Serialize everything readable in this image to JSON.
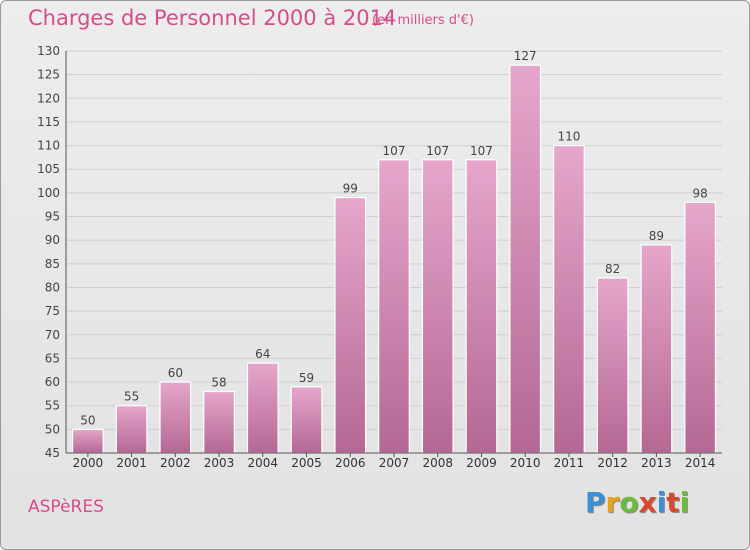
{
  "header": {
    "title": "Charges de Personnel 2000 à 2014",
    "subtitle": "(en milliers d'€)"
  },
  "footer": {
    "commune": "ASPèRES",
    "logo": {
      "letters": [
        "P",
        "r",
        "o",
        "x",
        "i",
        "t",
        "i"
      ],
      "colors": [
        "#3a8fd6",
        "#e8a317",
        "#6dbb3a",
        "#d84a2f",
        "#3a8fd6",
        "#d84a2f",
        "#6dbb3a"
      ]
    }
  },
  "colors": {
    "accent": "#d64c8c",
    "bar_top": "#e6a6cc",
    "bar_bottom": "#b46893",
    "grid": "#cfcfcf"
  },
  "chart_data": {
    "type": "bar",
    "categories": [
      "2000",
      "2001",
      "2002",
      "2003",
      "2004",
      "2005",
      "2006",
      "2007",
      "2008",
      "2009",
      "2010",
      "2011",
      "2012",
      "2013",
      "2014"
    ],
    "values": [
      50,
      55,
      60,
      58,
      64,
      59,
      99,
      107,
      107,
      107,
      127,
      110,
      82,
      89,
      98
    ],
    "data_labels": [
      "50",
      "55",
      "60",
      "58",
      "64",
      "59",
      "99",
      "107",
      "107",
      "107",
      "127",
      "110",
      "82",
      "89",
      "98"
    ],
    "ylim": [
      45,
      130
    ],
    "yticks": [
      45,
      50,
      55,
      60,
      65,
      70,
      75,
      80,
      85,
      90,
      95,
      100,
      105,
      110,
      115,
      120,
      125,
      130
    ],
    "grid": true,
    "legend": "none"
  }
}
